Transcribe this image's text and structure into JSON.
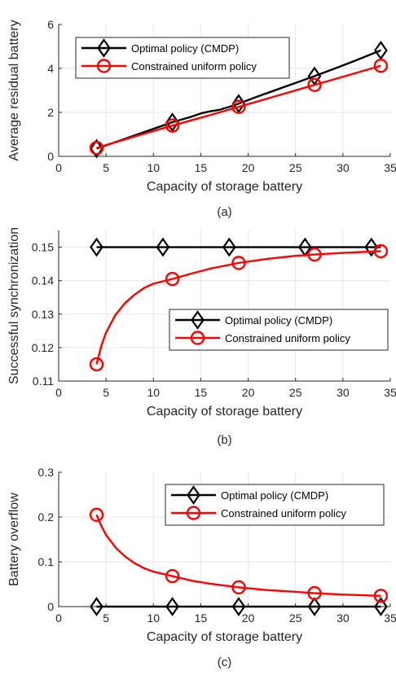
{
  "chart_data": [
    {
      "type": "line",
      "caption": "(a)",
      "xlabel": "Capacity of storage battery",
      "ylabel": "Average residual battery",
      "xlim": [
        0,
        35
      ],
      "ylim": [
        0,
        6
      ],
      "xticks": [
        0,
        5,
        10,
        15,
        20,
        25,
        30,
        35
      ],
      "yticks": [
        0,
        2,
        4,
        6
      ],
      "ytick_labels": [
        "0",
        "2",
        "4",
        "6"
      ],
      "grid": true,
      "legend_position": "top-left",
      "series": [
        {
          "name": "Optimal policy (CMDP)",
          "color": "#000000",
          "marker": "diamond",
          "x": [
            4,
            12,
            19,
            27,
            34
          ],
          "y": [
            0.35,
            1.55,
            2.4,
            3.65,
            4.82
          ],
          "curve_x": [
            4,
            6,
            8,
            10,
            12,
            14,
            15,
            16,
            17,
            18,
            19,
            21,
            23,
            25,
            27,
            29,
            31,
            34
          ],
          "curve_y": [
            0.35,
            0.65,
            0.95,
            1.25,
            1.55,
            1.8,
            1.95,
            2.05,
            2.12,
            2.25,
            2.4,
            2.72,
            3.03,
            3.34,
            3.65,
            3.97,
            4.3,
            4.82
          ]
        },
        {
          "name": "Constrained uniform policy",
          "color": "#ff0000",
          "marker": "circle",
          "x": [
            4,
            12,
            19,
            27,
            34
          ],
          "y": [
            0.38,
            1.4,
            2.25,
            3.25,
            4.12
          ],
          "curve_x": [
            4,
            8,
            12,
            16,
            19,
            23,
            27,
            30,
            34
          ],
          "curve_y": [
            0.38,
            0.9,
            1.4,
            1.88,
            2.25,
            2.75,
            3.25,
            3.62,
            4.12
          ]
        }
      ]
    },
    {
      "type": "line",
      "caption": "(b)",
      "xlabel": "Capacity of storage battery",
      "ylabel": "Successful synchronization",
      "xlim": [
        0,
        35
      ],
      "ylim": [
        0.11,
        0.155
      ],
      "xticks": [
        0,
        5,
        10,
        15,
        20,
        25,
        30,
        35
      ],
      "yticks": [
        0.11,
        0.12,
        0.13,
        0.14,
        0.15
      ],
      "ytick_labels": [
        "0.11",
        "0.12",
        "0.13",
        "0.14",
        "0.15"
      ],
      "grid": true,
      "legend_position": "bottom-right",
      "series": [
        {
          "name": "Optimal policy (CMDP)",
          "color": "#000000",
          "marker": "diamond",
          "x": [
            4,
            11,
            18,
            26,
            33
          ],
          "y": [
            0.15,
            0.15,
            0.15,
            0.15,
            0.15
          ],
          "curve_x": [
            4,
            11,
            18,
            26,
            34
          ],
          "curve_y": [
            0.15,
            0.15,
            0.15,
            0.15,
            0.15
          ]
        },
        {
          "name": "Constrained uniform policy",
          "color": "#ff0000",
          "marker": "circle",
          "x": [
            4,
            12,
            19,
            27,
            34
          ],
          "y": [
            0.115,
            0.1405,
            0.1453,
            0.1478,
            0.1488
          ],
          "curve_x": [
            4,
            4.5,
            5,
            6,
            7,
            8,
            9,
            10,
            12,
            14,
            16,
            19,
            22,
            25,
            27,
            30,
            34
          ],
          "curve_y": [
            0.115,
            0.1205,
            0.1245,
            0.1298,
            0.1333,
            0.1358,
            0.1378,
            0.1391,
            0.1405,
            0.1421,
            0.1436,
            0.1453,
            0.1465,
            0.1474,
            0.1478,
            0.1483,
            0.1488
          ]
        }
      ]
    },
    {
      "type": "line",
      "caption": "(c)",
      "xlabel": "Capacity of storage battery",
      "ylabel": "Battery overflow",
      "xlim": [
        0,
        35
      ],
      "ylim": [
        0,
        0.3
      ],
      "xticks": [
        0,
        5,
        10,
        15,
        20,
        25,
        30,
        35
      ],
      "yticks": [
        0,
        0.1,
        0.2,
        0.3
      ],
      "ytick_labels": [
        "0",
        "0.1",
        "0.2",
        "0.3"
      ],
      "grid": true,
      "legend_position": "top-right",
      "series": [
        {
          "name": "Optimal policy (CMDP)",
          "color": "#000000",
          "marker": "diamond",
          "x": [
            4,
            12,
            19,
            27,
            34
          ],
          "y": [
            0,
            0,
            0,
            0,
            0
          ],
          "curve_x": [
            4,
            12,
            19,
            27,
            34
          ],
          "curve_y": [
            0,
            0,
            0,
            0,
            0
          ]
        },
        {
          "name": "Constrained uniform policy",
          "color": "#ff0000",
          "marker": "circle",
          "x": [
            4,
            12,
            19,
            27,
            34
          ],
          "y": [
            0.205,
            0.068,
            0.043,
            0.03,
            0.024
          ],
          "curve_x": [
            4,
            4.5,
            5,
            6,
            7,
            8,
            9,
            10,
            12,
            14,
            16,
            19,
            22,
            25,
            27,
            30,
            34
          ],
          "curve_y": [
            0.205,
            0.18,
            0.16,
            0.132,
            0.112,
            0.097,
            0.086,
            0.078,
            0.068,
            0.058,
            0.051,
            0.043,
            0.037,
            0.033,
            0.03,
            0.027,
            0.024
          ]
        }
      ]
    }
  ]
}
